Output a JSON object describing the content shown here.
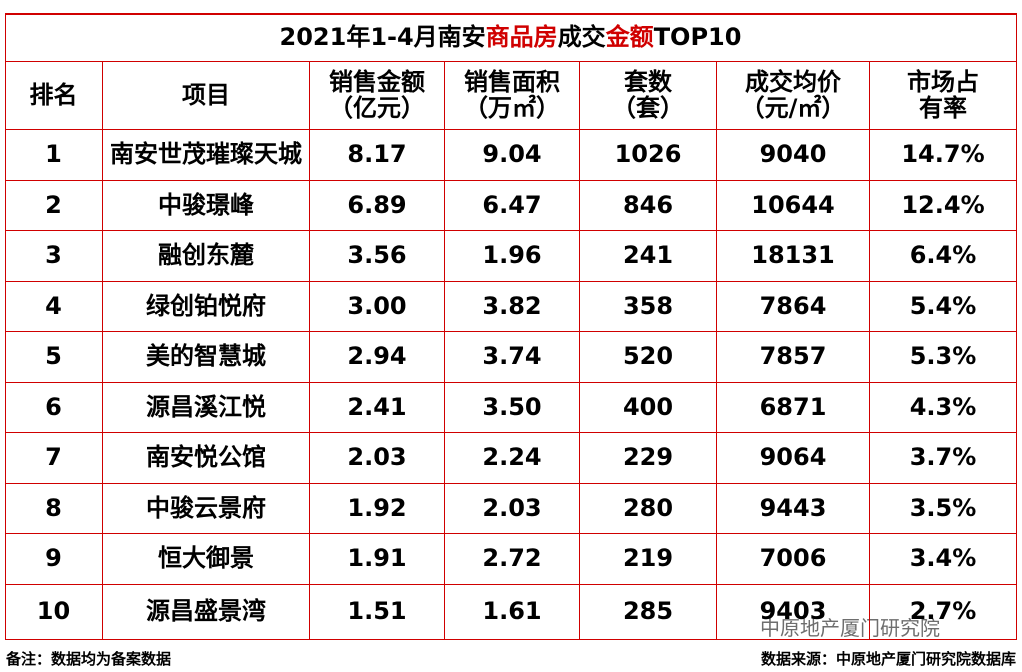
{
  "title": [
    {
      "text": "2021年1-4月南安",
      "red": false
    },
    {
      "text": "商品房",
      "red": true
    },
    {
      "text": "成交",
      "red": false
    },
    {
      "text": "金额",
      "red": true
    },
    {
      "text": "TOP10",
      "red": false
    }
  ],
  "header": [
    [
      "排名"
    ],
    [
      "项目"
    ],
    [
      "销售金额",
      "（亿元）"
    ],
    [
      "销售面积",
      "（万㎡）"
    ],
    [
      "套数",
      "（套）"
    ],
    [
      "成交均价",
      "（元/㎡）"
    ],
    [
      "市场占",
      "有率"
    ]
  ],
  "rows": [
    [
      "1",
      "南安世茂璀璨天城",
      "8.17",
      "9.04",
      "1026",
      "9040",
      "14.7%"
    ],
    [
      "2",
      "中骏璟峰",
      "6.89",
      "6.47",
      "846",
      "10644",
      "12.4%"
    ],
    [
      "3",
      "融创东麓",
      "3.56",
      "1.96",
      "241",
      "18131",
      "6.4%"
    ],
    [
      "4",
      "绿创铂悦府",
      "3.00",
      "3.82",
      "358",
      "7864",
      "5.4%"
    ],
    [
      "5",
      "美的智慧城",
      "2.94",
      "3.74",
      "520",
      "7857",
      "5.3%"
    ],
    [
      "6",
      "源昌溪江悦",
      "2.41",
      "3.50",
      "400",
      "6871",
      "4.3%"
    ],
    [
      "7",
      "南安悦公馆",
      "2.03",
      "2.24",
      "229",
      "9064",
      "3.7%"
    ],
    [
      "8",
      "中骏云景府",
      "1.92",
      "2.03",
      "280",
      "9443",
      "3.5%"
    ],
    [
      "9",
      "恒大御景",
      "1.91",
      "2.72",
      "219",
      "7006",
      "3.4%"
    ],
    [
      "10",
      "源昌盛景湾",
      "1.51",
      "1.61",
      "285",
      "9403",
      "2.7%"
    ]
  ],
  "watermark": "中原地产厦门研究院",
  "note": "备注：数据均为备案数据",
  "source": "数据来源：中原地产厦门研究院数据库"
}
